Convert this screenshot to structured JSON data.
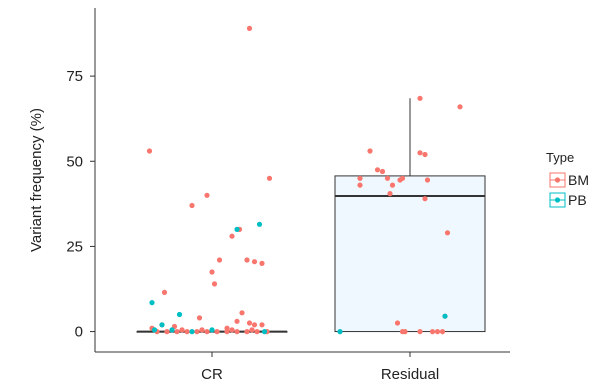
{
  "chart_data": {
    "type": "box+jitter",
    "xlabel": "",
    "ylabel": "Variant frequency (%)",
    "categories": [
      "CR",
      "Residual"
    ],
    "ylim": [
      -6,
      95
    ],
    "yticks": [
      0,
      25,
      50,
      75
    ],
    "grid": false,
    "legend": {
      "title": "Type",
      "placement": "right",
      "entries": [
        {
          "name": "BM",
          "color": "#F8766D"
        },
        {
          "name": "PB",
          "color": "#00BFC4"
        }
      ]
    },
    "boxes": [
      {
        "category": "CR",
        "min": 0,
        "q1": 0,
        "median": 0,
        "q3": 0,
        "max": 0
      },
      {
        "category": "Residual",
        "min": 0,
        "q1": 0,
        "median": 39.8,
        "q3": 45.7,
        "max": 68.5
      }
    ],
    "series": [
      {
        "name": "BM",
        "points": [
          {
            "category": "CR",
            "jitter": 0.15,
            "y": 89
          },
          {
            "category": "CR",
            "jitter": -0.25,
            "y": 53
          },
          {
            "category": "CR",
            "jitter": 0.23,
            "y": 45
          },
          {
            "category": "CR",
            "jitter": -0.02,
            "y": 40
          },
          {
            "category": "CR",
            "jitter": -0.08,
            "y": 37
          },
          {
            "category": "CR",
            "jitter": 0.08,
            "y": 28
          },
          {
            "category": "CR",
            "jitter": 0.11,
            "y": 30
          },
          {
            "category": "CR",
            "jitter": 0.03,
            "y": 21
          },
          {
            "category": "CR",
            "jitter": 0.14,
            "y": 21
          },
          {
            "category": "CR",
            "jitter": 0.17,
            "y": 20.5
          },
          {
            "category": "CR",
            "jitter": 0.2,
            "y": 20
          },
          {
            "category": "CR",
            "jitter": 0.0,
            "y": 17.5
          },
          {
            "category": "CR",
            "jitter": 0.01,
            "y": 14
          },
          {
            "category": "CR",
            "jitter": -0.19,
            "y": 11.5
          },
          {
            "category": "CR",
            "jitter": 0.12,
            "y": 5.5
          },
          {
            "category": "CR",
            "jitter": -0.05,
            "y": 4
          },
          {
            "category": "CR",
            "jitter": 0.1,
            "y": 3
          },
          {
            "category": "CR",
            "jitter": 0.15,
            "y": 2.5
          },
          {
            "category": "CR",
            "jitter": -0.2,
            "y": 2
          },
          {
            "category": "CR",
            "jitter": -0.15,
            "y": 1.5
          },
          {
            "category": "CR",
            "jitter": 0.06,
            "y": 1
          },
          {
            "category": "CR",
            "jitter": 0.17,
            "y": 2
          },
          {
            "category": "CR",
            "jitter": 0.2,
            "y": 2
          },
          {
            "category": "CR",
            "jitter": -0.24,
            "y": 1
          },
          {
            "category": "CR",
            "jitter": -0.22,
            "y": 0
          },
          {
            "category": "CR",
            "jitter": -0.18,
            "y": 0
          },
          {
            "category": "CR",
            "jitter": -0.14,
            "y": 0
          },
          {
            "category": "CR",
            "jitter": -0.1,
            "y": 0
          },
          {
            "category": "CR",
            "jitter": -0.06,
            "y": 0
          },
          {
            "category": "CR",
            "jitter": -0.02,
            "y": 0
          },
          {
            "category": "CR",
            "jitter": 0.02,
            "y": 0
          },
          {
            "category": "CR",
            "jitter": 0.06,
            "y": 0
          },
          {
            "category": "CR",
            "jitter": 0.1,
            "y": 0
          },
          {
            "category": "CR",
            "jitter": 0.14,
            "y": 0
          },
          {
            "category": "CR",
            "jitter": 0.18,
            "y": 0
          },
          {
            "category": "CR",
            "jitter": 0.22,
            "y": 0
          },
          {
            "category": "CR",
            "jitter": -0.12,
            "y": 0.5
          },
          {
            "category": "CR",
            "jitter": 0.08,
            "y": 0.5
          },
          {
            "category": "CR",
            "jitter": -0.04,
            "y": 0.5
          },
          {
            "category": "CR",
            "jitter": 0.16,
            "y": 0.5
          },
          {
            "category": "Residual",
            "jitter": 0.04,
            "y": 68.5
          },
          {
            "category": "Residual",
            "jitter": 0.2,
            "y": 66
          },
          {
            "category": "Residual",
            "jitter": 0.04,
            "y": 52.5
          },
          {
            "category": "Residual",
            "jitter": -0.16,
            "y": 53
          },
          {
            "category": "Residual",
            "jitter": 0.06,
            "y": 52
          },
          {
            "category": "Residual",
            "jitter": -0.13,
            "y": 47.5
          },
          {
            "category": "Residual",
            "jitter": -0.11,
            "y": 47
          },
          {
            "category": "Residual",
            "jitter": -0.2,
            "y": 45
          },
          {
            "category": "Residual",
            "jitter": -0.09,
            "y": 45
          },
          {
            "category": "Residual",
            "jitter": -0.04,
            "y": 44.5
          },
          {
            "category": "Residual",
            "jitter": -0.03,
            "y": 45
          },
          {
            "category": "Residual",
            "jitter": 0.07,
            "y": 44.5
          },
          {
            "category": "Residual",
            "jitter": -0.2,
            "y": 43
          },
          {
            "category": "Residual",
            "jitter": -0.07,
            "y": 43
          },
          {
            "category": "Residual",
            "jitter": -0.08,
            "y": 40.5
          },
          {
            "category": "Residual",
            "jitter": 0.06,
            "y": 39
          },
          {
            "category": "Residual",
            "jitter": 0.15,
            "y": 29
          },
          {
            "category": "Residual",
            "jitter": 0.14,
            "y": 4.5
          },
          {
            "category": "Residual",
            "jitter": -0.05,
            "y": 2.5
          },
          {
            "category": "Residual",
            "jitter": -0.03,
            "y": 0
          },
          {
            "category": "Residual",
            "jitter": -0.02,
            "y": 0
          },
          {
            "category": "Residual",
            "jitter": 0.04,
            "y": 0
          },
          {
            "category": "Residual",
            "jitter": 0.09,
            "y": 0
          },
          {
            "category": "Residual",
            "jitter": 0.11,
            "y": 0
          },
          {
            "category": "Residual",
            "jitter": 0.13,
            "y": 0
          }
        ]
      },
      {
        "name": "PB",
        "points": [
          {
            "category": "CR",
            "jitter": 0.19,
            "y": 31.5
          },
          {
            "category": "CR",
            "jitter": 0.1,
            "y": 30
          },
          {
            "category": "CR",
            "jitter": -0.24,
            "y": 8.5
          },
          {
            "category": "CR",
            "jitter": -0.13,
            "y": 5
          },
          {
            "category": "CR",
            "jitter": -0.2,
            "y": 2
          },
          {
            "category": "CR",
            "jitter": -0.23,
            "y": 0.5
          },
          {
            "category": "CR",
            "jitter": -0.16,
            "y": 0.5
          },
          {
            "category": "CR",
            "jitter": 0.0,
            "y": 0.5
          },
          {
            "category": "CR",
            "jitter": 0.21,
            "y": 0
          },
          {
            "category": "CR",
            "jitter": -0.08,
            "y": 0
          },
          {
            "category": "Residual",
            "jitter": -0.28,
            "y": 0
          },
          {
            "category": "Residual",
            "jitter": 0.14,
            "y": 4.5
          }
        ]
      }
    ]
  }
}
